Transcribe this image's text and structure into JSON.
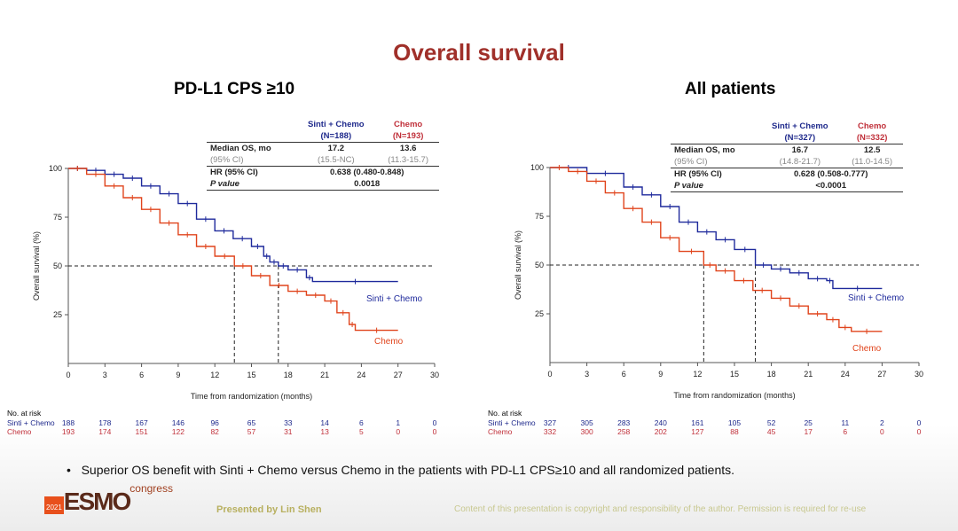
{
  "title": "Overall survival",
  "bullet": "Superior OS benefit with Sinti + Chemo versus Chemo in the patients with PD-L1 CPS≥10 and all randomized patients.",
  "footer": {
    "logo_year": "2021",
    "logo_text": "ESMO",
    "logo_sup": "congress",
    "presenter": "Presented by Lin Shen",
    "copyright": "Content of this presentation is copyright and responsibility of the author. Permission is required for re-use"
  },
  "colors": {
    "sinti": "#1f2a9c",
    "chemo": "#e0441c",
    "title": "#a0302a"
  },
  "panels": [
    {
      "subtitle": "PD-L1 CPS ≥10",
      "table": {
        "col1": "Sinti + Chemo",
        "col1_n": "(N=188)",
        "col2": "Chemo",
        "col2_n": "(N=193)",
        "row1_label": "Median OS, mo",
        "row1_v1": "17.2",
        "row1_v2": "13.6",
        "row2_label": "(95% CI)",
        "row2_v1": "(15.5-NC)",
        "row2_v2": "(11.3-15.7)",
        "hr_label": "HR (95% CI)",
        "hr": "0.638 (0.480-0.848)",
        "p_label": "P value",
        "p": "0.0018"
      },
      "risk": {
        "title": "No. at risk",
        "sinti_label": "Sinti + Chemo",
        "chemo_label": "Chemo",
        "sinti": [
          "188",
          "178",
          "167",
          "146",
          "96",
          "65",
          "33",
          "14",
          "6",
          "1",
          "0"
        ],
        "chemo": [
          "193",
          "174",
          "151",
          "122",
          "82",
          "57",
          "31",
          "13",
          "5",
          "0",
          "0"
        ]
      }
    },
    {
      "subtitle": "All patients",
      "table": {
        "col1": "Sinti + Chemo",
        "col1_n": "(N=327)",
        "col2": "Chemo",
        "col2_n": "(N=332)",
        "row1_label": "Median OS, mo",
        "row1_v1": "16.7",
        "row1_v2": "12.5",
        "row2_label": "(95% CI)",
        "row2_v1": "(14.8-21.7)",
        "row2_v2": "(11.0-14.5)",
        "hr_label": "HR (95% CI)",
        "hr": "0.628 (0.508-0.777)",
        "p_label": "P value",
        "p": "<0.0001"
      },
      "risk": {
        "title": "No. at risk",
        "sinti_label": "Sinti + Chemo",
        "chemo_label": "Chemo",
        "sinti": [
          "327",
          "305",
          "283",
          "240",
          "161",
          "105",
          "52",
          "25",
          "11",
          "2",
          "0"
        ],
        "chemo": [
          "332",
          "300",
          "258",
          "202",
          "127",
          "88",
          "45",
          "17",
          "6",
          "0",
          "0"
        ]
      }
    }
  ],
  "chart_data": [
    {
      "type": "line",
      "title": "PD-L1 CPS ≥10",
      "xlabel": "Time from randomization (months)",
      "ylabel": "Overall survival (%)",
      "xlim": [
        0,
        30
      ],
      "ylim": [
        0,
        100
      ],
      "xticks": [
        0,
        3,
        6,
        9,
        12,
        15,
        18,
        21,
        24,
        27,
        30
      ],
      "yticks": [
        25,
        50,
        75,
        100
      ],
      "reference_y": 50,
      "medians": [
        17.2,
        13.6
      ],
      "grid": false,
      "series": [
        {
          "name": "Sinti + Chemo",
          "x": [
            0,
            1.5,
            3,
            4.5,
            6,
            7.5,
            9,
            10.5,
            12,
            13.5,
            15,
            16,
            16.5,
            17.2,
            18,
            19.5,
            20,
            27
          ],
          "y": [
            100,
            99,
            97,
            95,
            91,
            87,
            82,
            74,
            68,
            64,
            60,
            55,
            52,
            50,
            48,
            44,
            42,
            42
          ]
        },
        {
          "name": "Chemo",
          "x": [
            0,
            1.5,
            3,
            4.5,
            6,
            7.5,
            9,
            10.5,
            12,
            13.6,
            15,
            16.5,
            18,
            19.5,
            21,
            22,
            23,
            23.5,
            27
          ],
          "y": [
            100,
            97,
            91,
            85,
            79,
            72,
            66,
            60,
            55,
            50,
            45,
            40,
            37,
            35,
            32,
            26,
            20,
            17,
            17
          ]
        }
      ]
    },
    {
      "type": "line",
      "title": "All patients",
      "xlabel": "Time from randomization (months)",
      "ylabel": "Overall survival (%)",
      "xlim": [
        0,
        30
      ],
      "ylim": [
        0,
        100
      ],
      "xticks": [
        0,
        3,
        6,
        9,
        12,
        15,
        18,
        21,
        24,
        27,
        30
      ],
      "yticks": [
        25,
        50,
        75,
        100
      ],
      "reference_y": 50,
      "medians": [
        16.7,
        12.5
      ],
      "grid": false,
      "series": [
        {
          "name": "Sinti + Chemo",
          "x": [
            0,
            3,
            6,
            7.5,
            9,
            10.5,
            12,
            13.5,
            15,
            16.7,
            18,
            19.5,
            21,
            22.5,
            23,
            27
          ],
          "y": [
            100,
            97,
            90,
            86,
            80,
            72,
            67,
            63,
            58,
            50,
            48,
            46,
            43,
            42,
            38,
            38
          ]
        },
        {
          "name": "Chemo",
          "x": [
            0,
            1.5,
            3,
            4.5,
            6,
            7.5,
            9,
            10.5,
            12.5,
            13.5,
            15,
            16.5,
            18,
            19.5,
            21,
            22.5,
            23.5,
            24.5,
            27
          ],
          "y": [
            100,
            98,
            93,
            87,
            79,
            72,
            64,
            57,
            50,
            47,
            42,
            37,
            33,
            29,
            25,
            22,
            18,
            16,
            16
          ]
        }
      ]
    }
  ]
}
